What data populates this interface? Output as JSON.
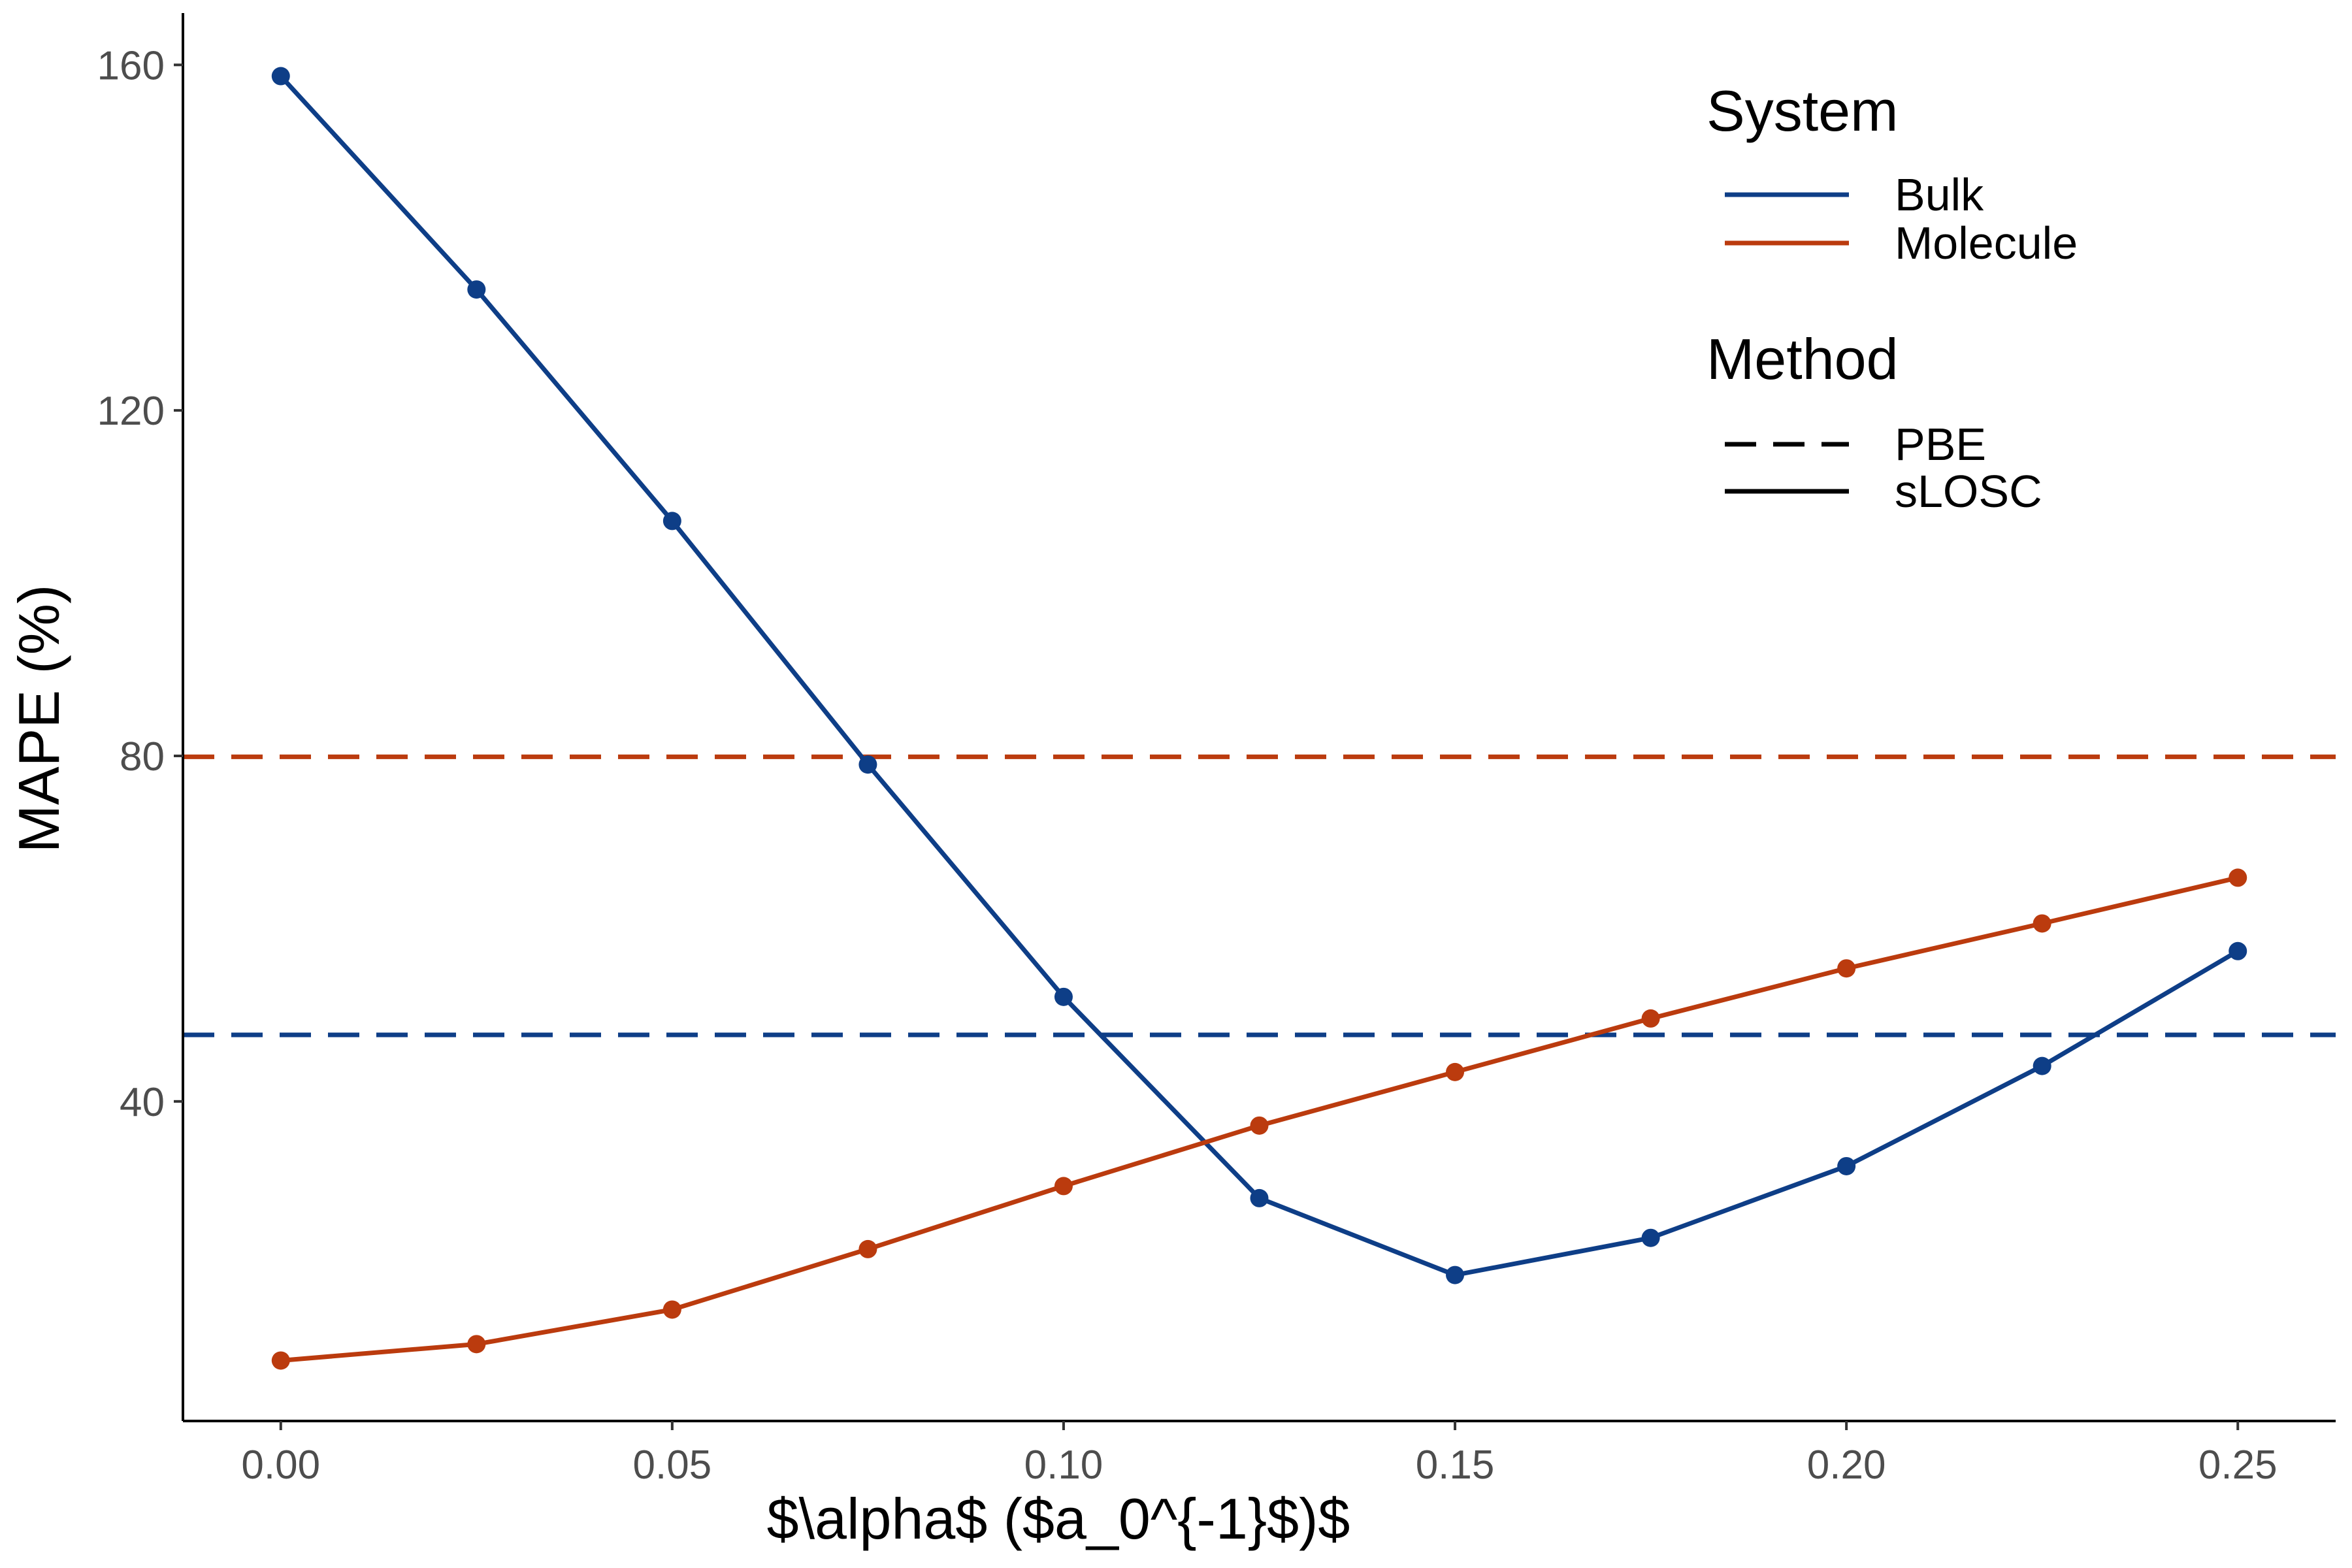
{
  "chart_data": {
    "type": "line",
    "xlabel": "$\\alpha$ ($a_0^{-1}$)$",
    "ylabel": "MAPE (%)",
    "xlim": [
      -0.0125,
      0.2625
    ],
    "ylim": [
      3,
      166
    ],
    "x_ticks": [
      0.0,
      0.05,
      0.1,
      0.15,
      0.2,
      0.25
    ],
    "x_tick_labels": [
      "0.00",
      "0.05",
      "0.10",
      "0.15",
      "0.20",
      "0.25"
    ],
    "y_ticks": [
      40,
      80,
      120,
      160
    ],
    "y_tick_labels": [
      "40",
      "80",
      "120",
      "160"
    ],
    "grid": false,
    "legend_position": "top-right",
    "x": [
      0.0,
      0.025,
      0.05,
      0.075,
      0.1,
      0.125,
      0.15,
      0.175,
      0.2,
      0.225,
      0.25
    ],
    "series": [
      {
        "name": "Bulk",
        "method": "sLOSC",
        "color": "#0e3e87",
        "values": [
          158.7,
          134.0,
          107.2,
          79.0,
          52.1,
          28.8,
          19.9,
          24.2,
          32.5,
          44.1,
          57.4
        ]
      },
      {
        "name": "Molecule",
        "method": "sLOSC",
        "color": "#bb3b0e",
        "values": [
          10.0,
          11.9,
          15.9,
          22.9,
          30.2,
          37.2,
          43.4,
          49.6,
          55.4,
          60.6,
          65.9
        ]
      }
    ],
    "reference_lines": [
      {
        "system": "Bulk",
        "method": "PBE",
        "color": "#0e3e87",
        "y": 47.7
      },
      {
        "system": "Molecule",
        "method": "PBE",
        "color": "#bb3b0e",
        "y": 79.9
      }
    ],
    "legend": {
      "system_title": "System",
      "system_items": [
        {
          "label": "Bulk",
          "color": "#0e3e87"
        },
        {
          "label": "Molecule",
          "color": "#bb3b0e"
        }
      ],
      "method_title": "Method",
      "method_items": [
        {
          "label": "PBE",
          "linetype": "dashed"
        },
        {
          "label": "sLOSC",
          "linetype": "solid"
        }
      ]
    }
  }
}
